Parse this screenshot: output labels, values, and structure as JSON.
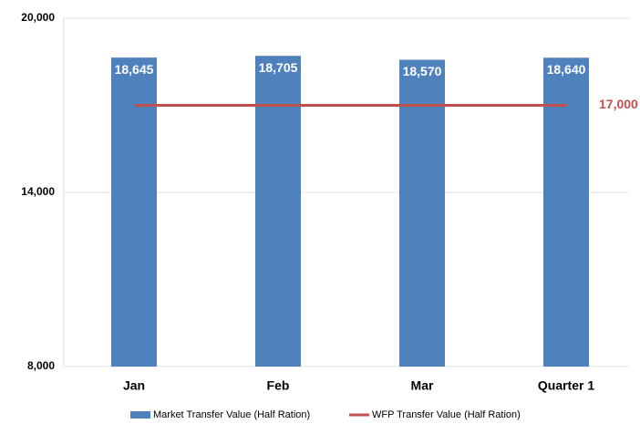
{
  "chart_data": {
    "type": "bar",
    "categories": [
      "Jan",
      "Feb",
      "Mar",
      "Quarter 1"
    ],
    "series": [
      {
        "name": "Market Transfer Value (Half Ration)",
        "type": "bar",
        "color": "#4f81bd",
        "values": [
          18645,
          18705,
          18570,
          18640
        ],
        "value_labels": [
          "18,645",
          "18,705",
          "18,570",
          "18,640"
        ]
      },
      {
        "name": "WFP Transfer Value (Half Ration)",
        "type": "line",
        "color": "#c0504d",
        "values": [
          17000,
          17000,
          17000,
          17000
        ],
        "value_labels": [
          null,
          null,
          null,
          "17,000"
        ]
      }
    ],
    "ylim": [
      8000,
      20000
    ],
    "yticks": [
      {
        "value": 8000,
        "label": "8,000"
      },
      {
        "value": 14000,
        "label": "14,000"
      },
      {
        "value": 20000,
        "label": "20,000"
      }
    ],
    "grid": true,
    "legend": "bottom"
  }
}
